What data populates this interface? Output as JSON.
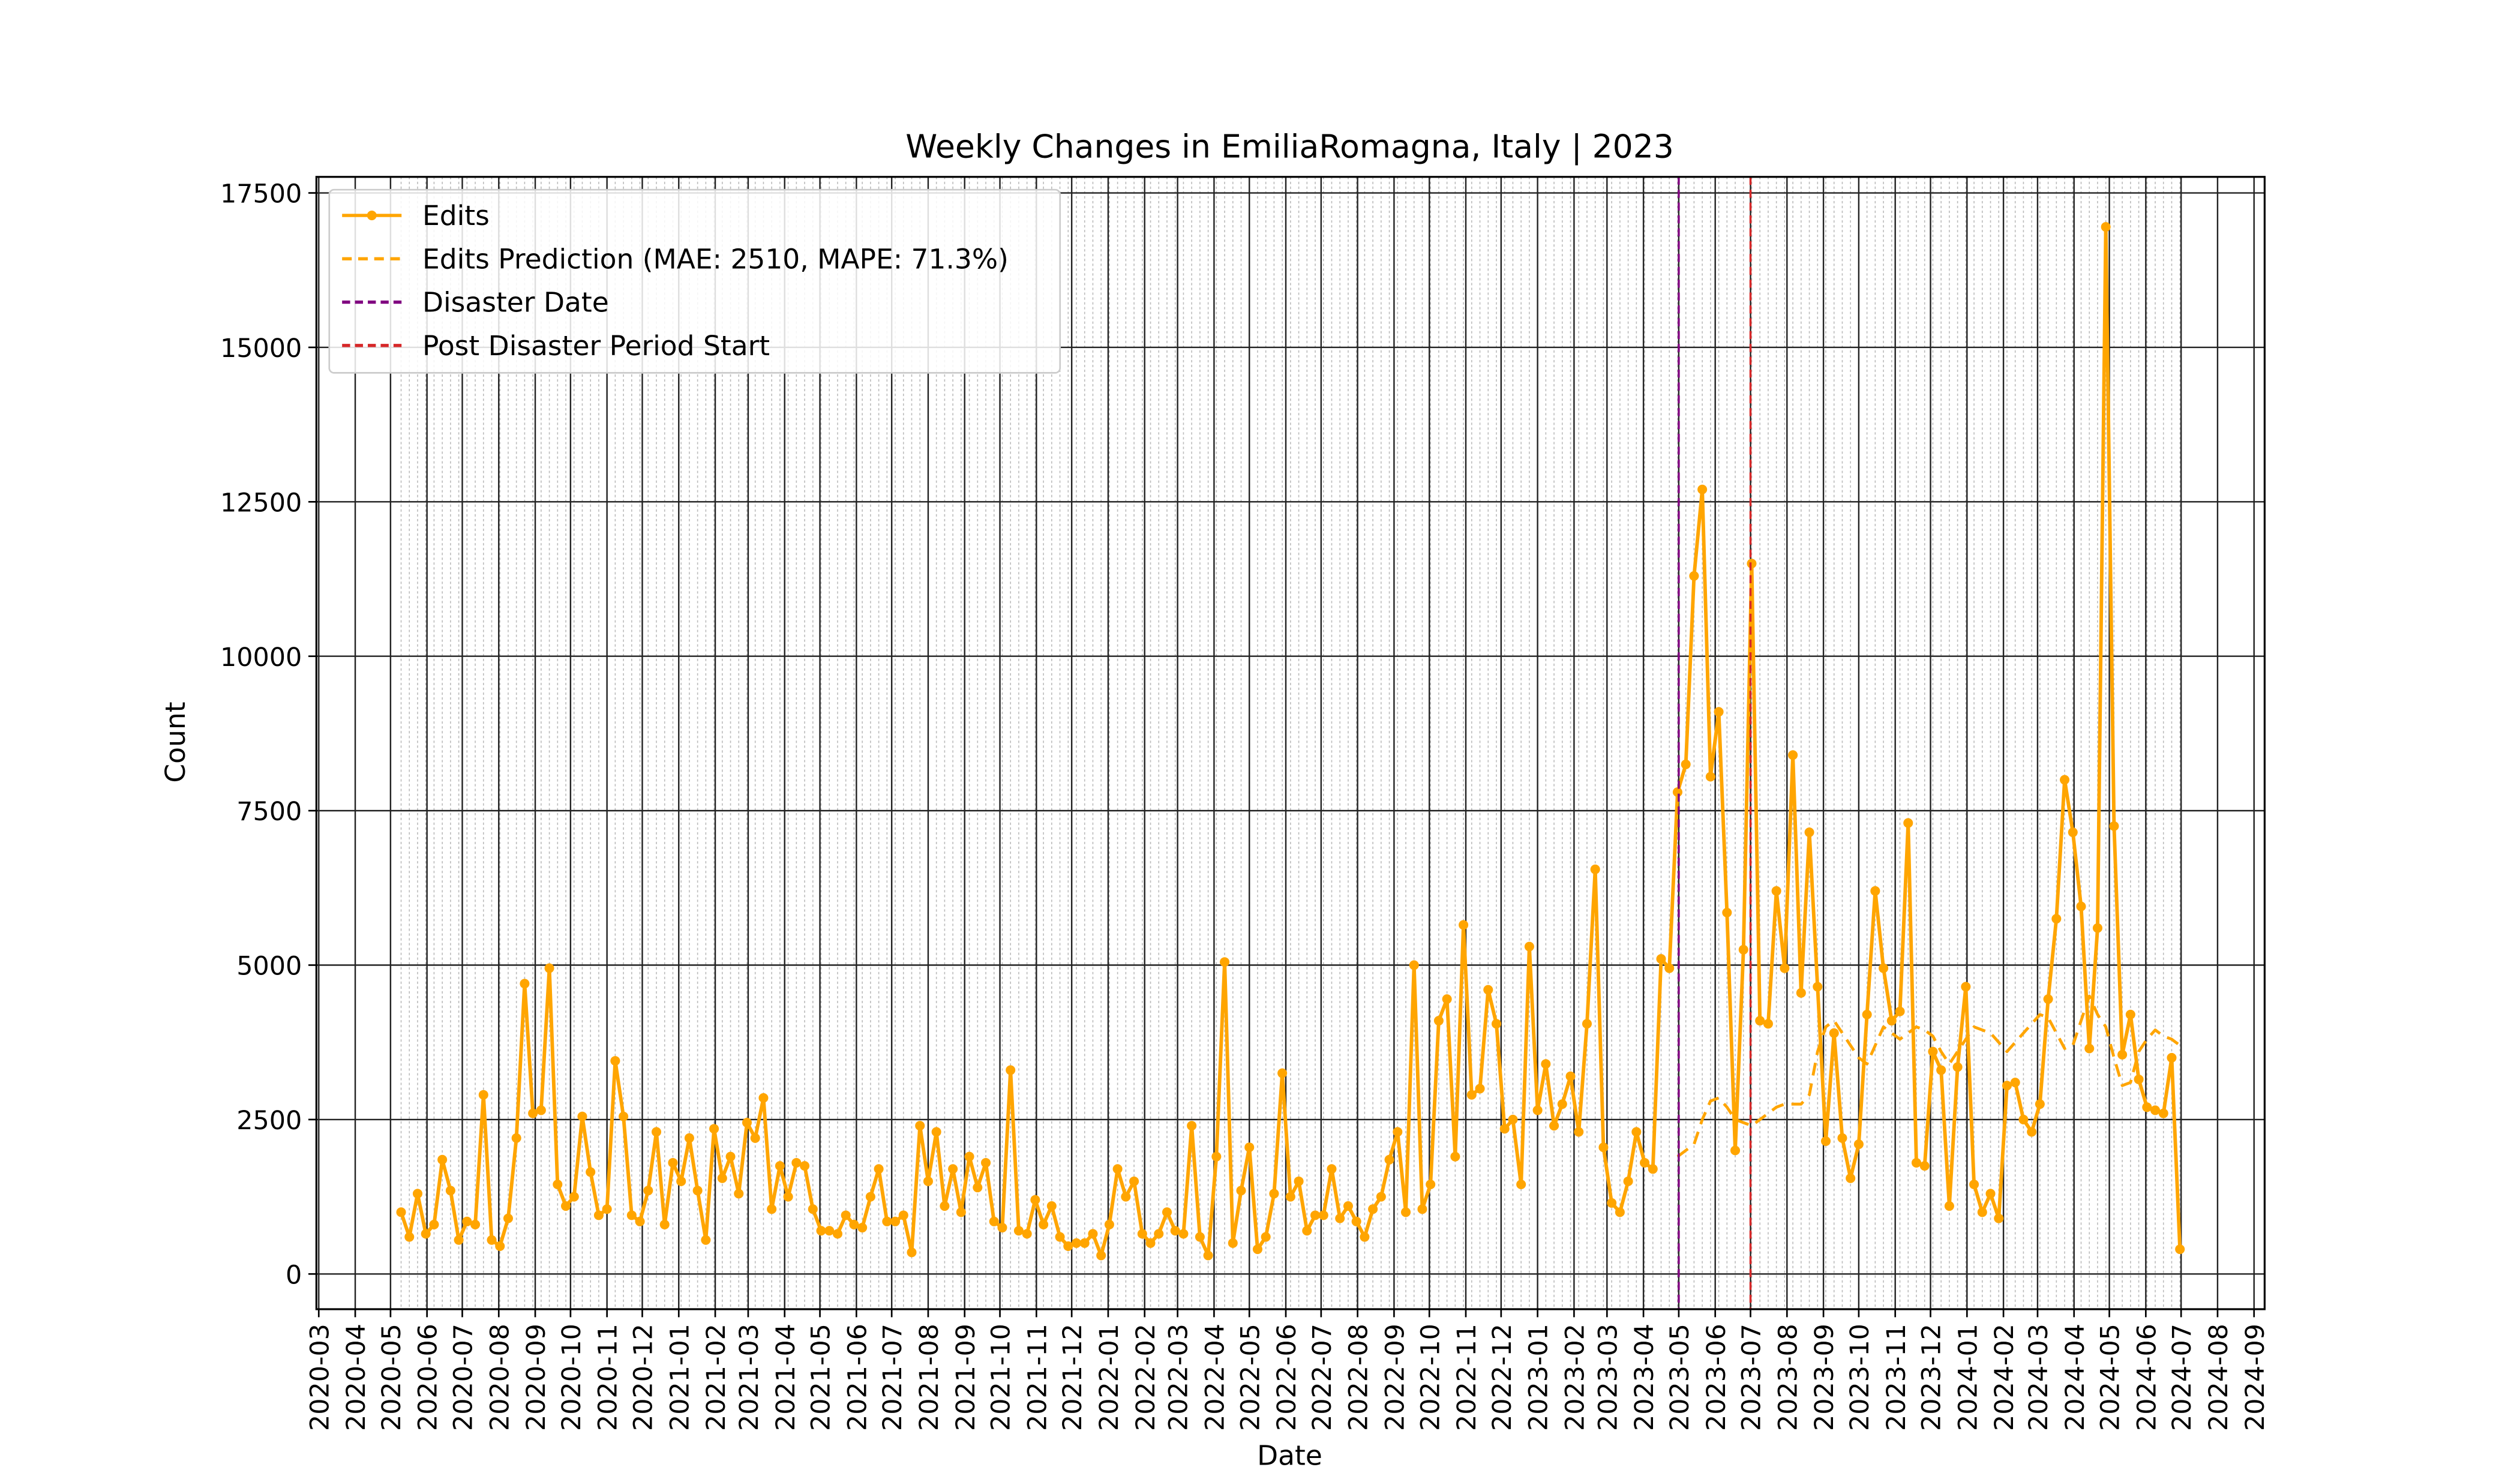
{
  "chart_data": {
    "type": "line",
    "title": "Weekly Changes in EmiliaRomagna, Italy | 2023",
    "x_label": "Date",
    "y_label": "Count",
    "x": [
      "2020-05-10",
      "2020-05-17",
      "2020-05-24",
      "2020-05-31",
      "2020-06-07",
      "2020-06-14",
      "2020-06-21",
      "2020-06-28",
      "2020-07-05",
      "2020-07-12",
      "2020-07-19",
      "2020-07-26",
      "2020-08-02",
      "2020-08-09",
      "2020-08-16",
      "2020-08-23",
      "2020-08-30",
      "2020-09-06",
      "2020-09-13",
      "2020-09-20",
      "2020-09-27",
      "2020-10-04",
      "2020-10-11",
      "2020-10-18",
      "2020-10-25",
      "2020-11-01",
      "2020-11-08",
      "2020-11-15",
      "2020-11-22",
      "2020-11-29",
      "2020-12-06",
      "2020-12-13",
      "2020-12-20",
      "2020-12-27",
      "2021-01-03",
      "2021-01-10",
      "2021-01-17",
      "2021-01-24",
      "2021-01-31",
      "2021-02-07",
      "2021-02-14",
      "2021-02-21",
      "2021-02-28",
      "2021-03-07",
      "2021-03-14",
      "2021-03-21",
      "2021-03-28",
      "2021-04-04",
      "2021-04-11",
      "2021-04-18",
      "2021-04-25",
      "2021-05-02",
      "2021-05-09",
      "2021-05-16",
      "2021-05-23",
      "2021-05-30",
      "2021-06-06",
      "2021-06-13",
      "2021-06-20",
      "2021-06-27",
      "2021-07-04",
      "2021-07-11",
      "2021-07-18",
      "2021-07-25",
      "2021-08-01",
      "2021-08-08",
      "2021-08-15",
      "2021-08-22",
      "2021-08-29",
      "2021-09-05",
      "2021-09-12",
      "2021-09-19",
      "2021-09-26",
      "2021-10-03",
      "2021-10-10",
      "2021-10-17",
      "2021-10-24",
      "2021-10-31",
      "2021-11-07",
      "2021-11-14",
      "2021-11-21",
      "2021-11-28",
      "2021-12-05",
      "2021-12-12",
      "2021-12-19",
      "2021-12-26",
      "2022-01-02",
      "2022-01-09",
      "2022-01-16",
      "2022-01-23",
      "2022-01-30",
      "2022-02-06",
      "2022-02-13",
      "2022-02-20",
      "2022-02-27",
      "2022-03-06",
      "2022-03-13",
      "2022-03-20",
      "2022-03-27",
      "2022-04-03",
      "2022-04-10",
      "2022-04-17",
      "2022-04-24",
      "2022-05-01",
      "2022-05-08",
      "2022-05-15",
      "2022-05-22",
      "2022-05-29",
      "2022-06-05",
      "2022-06-12",
      "2022-06-19",
      "2022-06-26",
      "2022-07-03",
      "2022-07-10",
      "2022-07-17",
      "2022-07-24",
      "2022-07-31",
      "2022-08-07",
      "2022-08-14",
      "2022-08-21",
      "2022-08-28",
      "2022-09-04",
      "2022-09-11",
      "2022-09-18",
      "2022-09-25",
      "2022-10-02",
      "2022-10-09",
      "2022-10-16",
      "2022-10-23",
      "2022-10-30",
      "2022-11-06",
      "2022-11-13",
      "2022-11-20",
      "2022-11-27",
      "2022-12-04",
      "2022-12-11",
      "2022-12-18",
      "2022-12-25",
      "2023-01-01",
      "2023-01-08",
      "2023-01-15",
      "2023-01-22",
      "2023-01-29",
      "2023-02-05",
      "2023-02-12",
      "2023-02-19",
      "2023-02-26",
      "2023-03-05",
      "2023-03-12",
      "2023-03-19",
      "2023-03-26",
      "2023-04-02",
      "2023-04-09",
      "2023-04-16",
      "2023-04-23",
      "2023-04-30",
      "2023-05-07",
      "2023-05-14",
      "2023-05-21",
      "2023-05-28",
      "2023-06-04",
      "2023-06-11",
      "2023-06-18",
      "2023-06-25",
      "2023-07-02",
      "2023-07-09",
      "2023-07-16",
      "2023-07-23",
      "2023-07-30",
      "2023-08-06",
      "2023-08-13",
      "2023-08-20",
      "2023-08-27",
      "2023-09-03",
      "2023-09-10",
      "2023-09-17",
      "2023-09-24",
      "2023-10-01",
      "2023-10-08",
      "2023-10-15",
      "2023-10-22",
      "2023-10-29",
      "2023-11-05",
      "2023-11-12",
      "2023-11-19",
      "2023-11-26",
      "2023-12-03",
      "2023-12-10",
      "2023-12-17",
      "2023-12-24",
      "2023-12-31",
      "2024-01-07",
      "2024-01-14",
      "2024-01-21",
      "2024-01-28",
      "2024-02-04",
      "2024-02-11",
      "2024-02-18",
      "2024-02-25",
      "2024-03-03",
      "2024-03-10",
      "2024-03-17",
      "2024-03-24",
      "2024-03-31",
      "2024-04-07",
      "2024-04-14",
      "2024-04-21",
      "2024-04-28",
      "2024-05-05",
      "2024-05-12",
      "2024-05-19",
      "2024-05-26",
      "2024-06-02",
      "2024-06-09",
      "2024-06-16",
      "2024-06-23",
      "2024-06-30"
    ],
    "series": [
      {
        "name": "Edits",
        "color": "#ffa500",
        "style": "solid",
        "markers": true,
        "values": [
          1000,
          600,
          1300,
          650,
          800,
          1850,
          1350,
          550,
          850,
          800,
          2900,
          550,
          450,
          900,
          2200,
          4700,
          2600,
          2650,
          4950,
          1450,
          1100,
          1250,
          2550,
          1650,
          950,
          1050,
          3450,
          2550,
          950,
          850,
          1350,
          2300,
          800,
          1800,
          1500,
          2200,
          1350,
          550,
          2350,
          1550,
          1900,
          1300,
          2450,
          2200,
          2850,
          1050,
          1750,
          1250,
          1800,
          1750,
          1050,
          700,
          700,
          650,
          950,
          800,
          750,
          1250,
          1700,
          850,
          850,
          950,
          350,
          2400,
          1500,
          2300,
          1100,
          1700,
          1000,
          1900,
          1400,
          1800,
          850,
          750,
          3300,
          700,
          650,
          1200,
          800,
          1100,
          600,
          450,
          500,
          500,
          650,
          300,
          800,
          1700,
          1250,
          1500,
          650,
          500,
          650,
          1000,
          700,
          650,
          2400,
          600,
          300,
          1900,
          5050,
          500,
          1350,
          2050,
          400,
          600,
          1300,
          3250,
          1250,
          1500,
          700,
          950,
          950,
          1700,
          900,
          1100,
          850,
          600,
          1050,
          1250,
          1850,
          2300,
          1000,
          5000,
          1050,
          1450,
          4100,
          4450,
          1900,
          5650,
          2900,
          3000,
          4600,
          4050,
          2350,
          2500,
          1450,
          5300,
          2650,
          3400,
          2400,
          2750,
          3200,
          2300,
          4050,
          6550,
          2050,
          1150,
          1000,
          1500,
          2300,
          1800,
          1700,
          5100,
          4950,
          7800,
          8250,
          11300,
          12700,
          8050,
          9100,
          5850,
          2000,
          5250,
          11500,
          4100,
          4050,
          6200,
          4950,
          8400,
          4550,
          7150,
          4650,
          2150,
          3900,
          2200,
          1550,
          2100,
          4200,
          6200,
          4950,
          4100,
          4250,
          7300,
          1800,
          1750,
          3600,
          3300,
          1100,
          3350,
          4650,
          1450,
          1000,
          1300,
          900,
          3050,
          3100,
          2500,
          2300,
          2750,
          4450,
          5750,
          8000,
          7150,
          5950,
          3650,
          5600,
          16950,
          7250,
          3550,
          4200,
          3150,
          2700,
          2650,
          2600,
          3500,
          400
        ]
      },
      {
        "name": "Edits Prediction (MAE: 2510, MAPE: 71.3%)",
        "color": "#ffa500",
        "style": "dashed",
        "markers": false,
        "values": [
          null,
          null,
          null,
          null,
          null,
          null,
          null,
          null,
          null,
          null,
          null,
          null,
          null,
          null,
          null,
          null,
          null,
          null,
          null,
          null,
          null,
          null,
          null,
          null,
          null,
          null,
          null,
          null,
          null,
          null,
          null,
          null,
          null,
          null,
          null,
          null,
          null,
          null,
          null,
          null,
          null,
          null,
          null,
          null,
          null,
          null,
          null,
          null,
          null,
          null,
          null,
          null,
          null,
          null,
          null,
          null,
          null,
          null,
          null,
          null,
          null,
          null,
          null,
          null,
          null,
          null,
          null,
          null,
          null,
          null,
          null,
          null,
          null,
          null,
          null,
          null,
          null,
          null,
          null,
          null,
          null,
          null,
          null,
          null,
          null,
          null,
          null,
          null,
          null,
          null,
          null,
          null,
          null,
          null,
          null,
          null,
          null,
          null,
          null,
          null,
          null,
          null,
          null,
          null,
          null,
          null,
          null,
          null,
          null,
          null,
          null,
          null,
          null,
          null,
          null,
          null,
          null,
          null,
          null,
          null,
          null,
          null,
          null,
          null,
          null,
          null,
          null,
          null,
          null,
          null,
          null,
          null,
          null,
          null,
          null,
          null,
          null,
          null,
          null,
          null,
          null,
          null,
          null,
          null,
          null,
          null,
          null,
          null,
          null,
          null,
          null,
          null,
          null,
          null,
          null,
          1900,
          2000,
          2100,
          2500,
          2800,
          2850,
          2700,
          2500,
          2450,
          2400,
          2500,
          2600,
          2700,
          2750,
          2750,
          2750,
          2900,
          3600,
          4000,
          4100,
          3900,
          3700,
          3500,
          3400,
          3700,
          4000,
          3900,
          3800,
          3900,
          4000,
          3950,
          3850,
          3600,
          3400,
          3600,
          3800,
          4000,
          3950,
          3900,
          3750,
          3600,
          3750,
          3900,
          4050,
          4200,
          4150,
          3900,
          3650,
          3700,
          4100,
          4500,
          4200,
          4000,
          3500,
          3050,
          3100,
          3600,
          3800,
          3950,
          3850,
          3800,
          3700
        ]
      }
    ],
    "vlines": [
      {
        "name": "Disaster Date",
        "x": "2023-05-01",
        "color": "#800080"
      },
      {
        "name": "Post Disaster Period Start",
        "x": "2023-07-01",
        "color": "#d62728"
      }
    ],
    "xlim": [
      "2020-02-28",
      "2024-09-10"
    ],
    "xticks": [
      "2020-03",
      "2020-04",
      "2020-05",
      "2020-06",
      "2020-07",
      "2020-08",
      "2020-09",
      "2020-10",
      "2020-11",
      "2020-12",
      "2021-01",
      "2021-02",
      "2021-03",
      "2021-04",
      "2021-05",
      "2021-06",
      "2021-07",
      "2021-08",
      "2021-09",
      "2021-10",
      "2021-11",
      "2021-12",
      "2022-01",
      "2022-02",
      "2022-03",
      "2022-04",
      "2022-05",
      "2022-06",
      "2022-07",
      "2022-08",
      "2022-09",
      "2022-10",
      "2022-11",
      "2022-12",
      "2023-01",
      "2023-02",
      "2023-03",
      "2023-04",
      "2023-05",
      "2023-06",
      "2023-07",
      "2023-08",
      "2023-09",
      "2023-10",
      "2023-11",
      "2023-12",
      "2024-01",
      "2024-02",
      "2024-03",
      "2024-04",
      "2024-05",
      "2024-06",
      "2024-07",
      "2024-08",
      "2024-09"
    ],
    "ylim": [
      -570,
      17760
    ],
    "yticks": [
      0,
      2500,
      5000,
      7500,
      10000,
      12500,
      15000,
      17500
    ],
    "grid": true,
    "minor_grid": true,
    "legend": "upper left"
  }
}
